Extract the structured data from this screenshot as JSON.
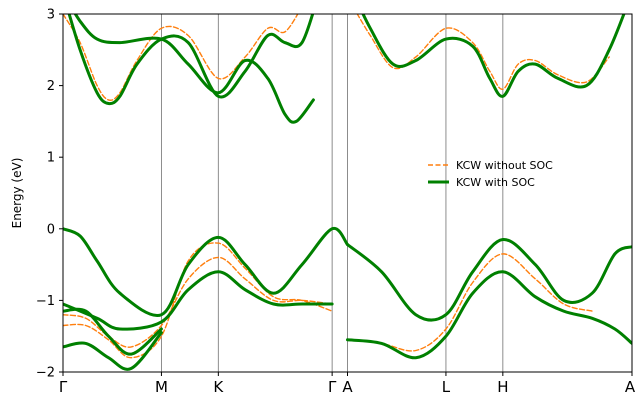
{
  "chart_data": {
    "type": "line",
    "title": "",
    "ylabel": "Energy (eV)",
    "xlabel": "",
    "ylim": [
      -2,
      3
    ],
    "yticks": [
      {
        "value": -2,
        "label": "−2"
      },
      {
        "value": -1,
        "label": "−1"
      },
      {
        "value": 0,
        "label": "0"
      },
      {
        "value": 1,
        "label": "1"
      },
      {
        "value": 2,
        "label": "2"
      },
      {
        "value": 3,
        "label": "3"
      }
    ],
    "k_path": {
      "range": [
        0,
        10
      ],
      "points": [
        {
          "label": "Γ",
          "k": 0.0
        },
        {
          "label": "M",
          "k": 1.73
        },
        {
          "label": "K",
          "k": 2.73
        },
        {
          "label": "Γ",
          "k": 4.73
        },
        {
          "label": "A",
          "k": 5.0
        },
        {
          "label": "L",
          "k": 6.73
        },
        {
          "label": "H",
          "k": 7.73
        },
        {
          "label": "A",
          "k": 10.0
        }
      ]
    },
    "legend": {
      "placement": "center-right",
      "entries": [
        {
          "name": "KCW without SOC",
          "style": "dashed",
          "color": "#ff7f0e"
        },
        {
          "name": "KCW with SOC",
          "style": "solid-thick",
          "color": "#008000"
        }
      ]
    },
    "series": [
      {
        "name": "KCW with SOC",
        "color": "#008000",
        "bands": [
          {
            "k": [
              0,
              0.3,
              0.6,
              1.0,
              1.73,
              2.2,
              2.73,
              3.2,
              3.7,
              4.2,
              4.73,
              5.0
            ],
            "E": [
              0.0,
              -0.1,
              -0.45,
              -0.9,
              -1.2,
              -0.5,
              -0.12,
              -0.5,
              -0.9,
              -0.5,
              0.0,
              -0.22
            ]
          },
          {
            "k": [
              0,
              0.6,
              1.0,
              1.73,
              2.2,
              2.73,
              3.2,
              3.7,
              4.2,
              4.73
            ],
            "E": [
              -1.05,
              -1.25,
              -1.4,
              -1.3,
              -0.85,
              -0.6,
              -0.85,
              -1.05,
              -1.05,
              -1.05
            ]
          },
          {
            "k": [
              0,
              0.4,
              0.8,
              1.2,
              1.73
            ],
            "E": [
              -1.15,
              -1.15,
              -1.5,
              -1.75,
              -1.4
            ]
          },
          {
            "k": [
              0,
              0.4,
              0.8,
              1.2,
              1.73
            ],
            "E": [
              -1.65,
              -1.6,
              -1.8,
              -1.95,
              -1.45
            ]
          },
          {
            "k": [
              5.0,
              5.6,
              6.2,
              6.73,
              7.2,
              7.73,
              8.3,
              8.8,
              9.3,
              9.7,
              10.0
            ],
            "E": [
              -0.22,
              -0.6,
              -1.2,
              -1.2,
              -0.6,
              -0.15,
              -0.5,
              -1.0,
              -0.9,
              -0.35,
              -0.25
            ]
          },
          {
            "k": [
              5.0,
              5.6,
              6.2,
              6.73,
              7.2,
              7.73,
              8.3,
              8.8,
              9.3,
              9.7,
              10.0
            ],
            "E": [
              -1.55,
              -1.6,
              -1.8,
              -1.5,
              -0.9,
              -0.6,
              -0.95,
              -1.15,
              -1.25,
              -1.4,
              -1.6
            ]
          },
          {
            "k": [
              0,
              0.3,
              0.6,
              0.8,
              1.0,
              1.3,
              1.73,
              2.2,
              2.73,
              3.2,
              3.6,
              3.9,
              4.2,
              4.5
            ],
            "E": [
              3.3,
              2.5,
              1.9,
              1.75,
              1.85,
              2.3,
              2.65,
              2.6,
              1.85,
              2.2,
              2.7,
              2.6,
              2.6,
              3.3
            ]
          },
          {
            "k": [
              0,
              0.3,
              0.6,
              1.0,
              1.73,
              2.2,
              2.73,
              3.2,
              3.6,
              3.9,
              4.1,
              4.4
            ],
            "E": [
              3.3,
              2.9,
              2.65,
              2.6,
              2.65,
              2.3,
              1.9,
              2.35,
              2.1,
              1.6,
              1.5,
              1.8
            ]
          },
          {
            "k": [
              5.1,
              5.4,
              5.8,
              6.2,
              6.73,
              7.2,
              7.5,
              7.73,
              8.0,
              8.3,
              8.7,
              9.2,
              9.6,
              10.0
            ],
            "E": [
              3.3,
              2.8,
              2.3,
              2.35,
              2.65,
              2.55,
              2.1,
              1.85,
              2.2,
              2.3,
              2.1,
              2.0,
              2.5,
              3.3
            ]
          }
        ]
      },
      {
        "name": "KCW without SOC",
        "color": "#ff7f0e",
        "bands": [
          {
            "k": [
              0,
              0.4,
              0.8,
              1.2,
              1.73,
              2.2,
              2.73,
              3.2,
              3.7,
              4.2,
              4.73
            ],
            "E": [
              -1.2,
              -1.25,
              -1.5,
              -1.65,
              -1.35,
              -0.7,
              -0.4,
              -0.7,
              -1.0,
              -1.0,
              -1.05
            ]
          },
          {
            "k": [
              0,
              0.4,
              0.8,
              1.2,
              1.73,
              2.2,
              2.73,
              3.2,
              3.7,
              4.2,
              4.73
            ],
            "E": [
              -1.35,
              -1.35,
              -1.55,
              -1.8,
              -1.5,
              -0.45,
              -0.2,
              -0.55,
              -0.95,
              -1.0,
              -1.15
            ]
          },
          {
            "k": [
              5.0,
              5.6,
              6.2,
              6.73,
              7.2,
              7.73,
              8.3,
              8.8,
              9.3
            ],
            "E": [
              -1.55,
              -1.6,
              -1.7,
              -1.4,
              -0.75,
              -0.35,
              -0.7,
              -1.05,
              -1.15
            ]
          },
          {
            "k": [
              0,
              0.3,
              0.6,
              0.8,
              1.0,
              1.3,
              1.73,
              2.2,
              2.73,
              3.2,
              3.6,
              3.9,
              4.2
            ],
            "E": [
              3.0,
              2.6,
              2.0,
              1.8,
              1.9,
              2.35,
              2.8,
              2.7,
              2.1,
              2.4,
              2.8,
              2.75,
              3.1
            ]
          },
          {
            "k": [
              5.1,
              5.4,
              5.8,
              6.2,
              6.73,
              7.2,
              7.5,
              7.73,
              8.0,
              8.3,
              8.7,
              9.2,
              9.6
            ],
            "E": [
              3.1,
              2.7,
              2.25,
              2.4,
              2.8,
              2.6,
              2.2,
              1.95,
              2.3,
              2.35,
              2.15,
              2.05,
              2.4
            ]
          }
        ]
      }
    ]
  }
}
